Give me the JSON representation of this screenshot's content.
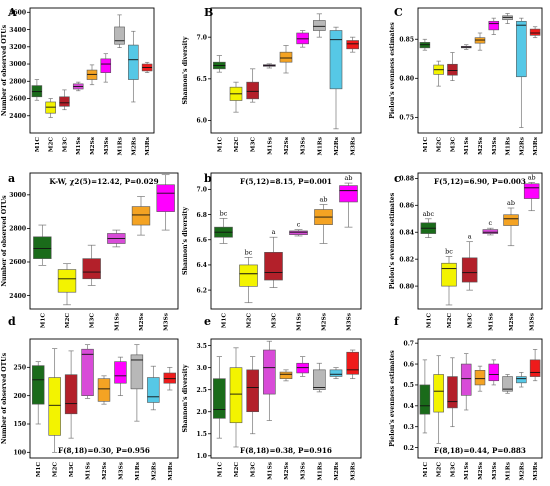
{
  "colors": {
    "M1C": "#1a6b1a",
    "M2C": "#f3f300",
    "M3C": "#b3202a",
    "M1Ss": "#d84bd8",
    "M2Ss": "#f4a323",
    "M3Ss": "#ff00ff",
    "M1Rs": "#b8b8b8",
    "M2Rs": "#56c8e6",
    "M3Rs": "#ef1b1b"
  },
  "chart_data": [
    {
      "panel": "A",
      "type": "boxplot",
      "ylabel": "Number of observed OTUs",
      "ylim": [
        2200,
        3650
      ],
      "yticks": [
        2400,
        2600,
        2800,
        3000,
        3200,
        3400,
        3600
      ],
      "categories": [
        "M1C",
        "M2C",
        "M3C",
        "M1Ss",
        "M2Ss",
        "M3Ss",
        "M1Rs",
        "M2Rs",
        "M3Rs"
      ],
      "boxes": [
        {
          "min": 2580,
          "q1": 2620,
          "median": 2680,
          "q3": 2750,
          "max": 2820
        },
        {
          "min": 2380,
          "q1": 2430,
          "median": 2500,
          "q3": 2560,
          "max": 2600
        },
        {
          "min": 2470,
          "q1": 2510,
          "median": 2550,
          "q3": 2620,
          "max": 2700
        },
        {
          "min": 2690,
          "q1": 2710,
          "median": 2740,
          "q3": 2770,
          "max": 2790
        },
        {
          "min": 2760,
          "q1": 2820,
          "median": 2880,
          "q3": 2930,
          "max": 2990
        },
        {
          "min": 2790,
          "q1": 2900,
          "median": 3000,
          "q3": 3060,
          "max": 3120
        },
        {
          "min": 3190,
          "q1": 3230,
          "median": 3270,
          "q3": 3430,
          "max": 3570
        },
        {
          "min": 2560,
          "q1": 2820,
          "median": 3050,
          "q3": 3220,
          "max": 3380
        },
        {
          "min": 2900,
          "q1": 2920,
          "median": 2960,
          "q3": 3000,
          "max": 3020
        }
      ]
    },
    {
      "panel": "B",
      "type": "boxplot",
      "ylabel": "Shannon's diversity",
      "ylim": [
        5.85,
        7.35
      ],
      "yticks": [
        6.0,
        6.5,
        7.0
      ],
      "ticklabels": [
        "6.0",
        "6.5",
        "7.0"
      ],
      "categories": [
        "M1C",
        "M2C",
        "M3C",
        "M1Ss",
        "M2Ss",
        "M3Ss",
        "M1Rs",
        "M2Rs",
        "M3Rs"
      ],
      "boxes": [
        {
          "min": 6.58,
          "q1": 6.62,
          "median": 6.66,
          "q3": 6.7,
          "max": 6.78
        },
        {
          "min": 6.1,
          "q1": 6.24,
          "median": 6.32,
          "q3": 6.4,
          "max": 6.46
        },
        {
          "min": 6.22,
          "q1": 6.26,
          "median": 6.35,
          "q3": 6.46,
          "max": 6.62
        },
        {
          "min": 6.63,
          "q1": 6.65,
          "median": 6.66,
          "q3": 6.67,
          "max": 6.68
        },
        {
          "min": 6.57,
          "q1": 6.7,
          "median": 6.75,
          "q3": 6.82,
          "max": 6.9
        },
        {
          "min": 6.88,
          "q1": 6.92,
          "median": 6.98,
          "q3": 7.05,
          "max": 7.08
        },
        {
          "min": 7.0,
          "q1": 7.08,
          "median": 7.13,
          "q3": 7.2,
          "max": 7.28
        },
        {
          "min": 5.9,
          "q1": 6.38,
          "median": 6.97,
          "q3": 7.08,
          "max": 7.12
        },
        {
          "min": 6.82,
          "q1": 6.86,
          "median": 6.92,
          "q3": 6.96,
          "max": 7.0
        }
      ]
    },
    {
      "panel": "C",
      "type": "boxplot",
      "ylabel": "Pielou's evenness estimates",
      "ylim": [
        0.73,
        0.89
      ],
      "yticks": [
        0.75,
        0.8,
        0.85
      ],
      "ticklabels": [
        "0.75",
        "0.80",
        "0.85"
      ],
      "categories": [
        "M1C",
        "M2C",
        "M3C",
        "M1Ss",
        "M2Ss",
        "M3Ss",
        "M1Rs",
        "M2Rs",
        "M3Rs"
      ],
      "boxes": [
        {
          "min": 0.836,
          "q1": 0.839,
          "median": 0.843,
          "q3": 0.846,
          "max": 0.85
        },
        {
          "min": 0.79,
          "q1": 0.805,
          "median": 0.811,
          "q3": 0.817,
          "max": 0.822
        },
        {
          "min": 0.797,
          "q1": 0.804,
          "median": 0.81,
          "q3": 0.818,
          "max": 0.833
        },
        {
          "min": 0.837,
          "q1": 0.839,
          "median": 0.84,
          "q3": 0.841,
          "max": 0.843
        },
        {
          "min": 0.836,
          "q1": 0.845,
          "median": 0.849,
          "q3": 0.852,
          "max": 0.858
        },
        {
          "min": 0.856,
          "q1": 0.862,
          "median": 0.87,
          "q3": 0.873,
          "max": 0.877
        },
        {
          "min": 0.87,
          "q1": 0.875,
          "median": 0.878,
          "q3": 0.88,
          "max": 0.883
        },
        {
          "min": 0.737,
          "q1": 0.802,
          "median": 0.868,
          "q3": 0.873,
          "max": 0.877
        },
        {
          "min": 0.852,
          "q1": 0.855,
          "median": 0.858,
          "q3": 0.863,
          "max": 0.866
        }
      ]
    },
    {
      "panel": "a",
      "type": "boxplot",
      "stat": "K-W, χ2(5)=12.42, P=0.029",
      "ylabel": "Number of observed OTUs",
      "ylim": [
        2320,
        3130
      ],
      "yticks": [
        2400,
        2600,
        2800,
        3000
      ],
      "categories": [
        "M1C",
        "M2C",
        "M3C",
        "M1Ss",
        "M2Ss",
        "M3Ss"
      ],
      "boxes": [
        {
          "min": 2580,
          "q1": 2620,
          "median": 2680,
          "q3": 2750,
          "max": 2820
        },
        {
          "min": 2345,
          "q1": 2420,
          "median": 2500,
          "q3": 2555,
          "max": 2590
        },
        {
          "min": 2460,
          "q1": 2500,
          "median": 2540,
          "q3": 2620,
          "max": 2700
        },
        {
          "min": 2690,
          "q1": 2710,
          "median": 2740,
          "q3": 2770,
          "max": 2790
        },
        {
          "min": 2760,
          "q1": 2820,
          "median": 2880,
          "q3": 2930,
          "max": 2990
        },
        {
          "min": 2790,
          "q1": 2900,
          "median": 3010,
          "q3": 3060,
          "max": 3120
        }
      ]
    },
    {
      "panel": "b",
      "type": "boxplot",
      "stat": "F(5,12)=8.15, P=0.001",
      "ylabel": "Shannon's diversity",
      "ylim": [
        6.05,
        7.13
      ],
      "yticks": [
        6.2,
        6.4,
        6.6,
        6.8,
        7.0
      ],
      "ticklabels": [
        "6.2",
        "6.4",
        "6.6",
        "6.8",
        "7.0"
      ],
      "categories": [
        "M1C",
        "M2C",
        "M3C",
        "M1Ss",
        "M2Ss",
        "M3Ss"
      ],
      "letters": [
        "bc",
        "bc",
        "a",
        "c",
        "ab",
        "ab"
      ],
      "boxes": [
        {
          "min": 6.57,
          "q1": 6.62,
          "median": 6.66,
          "q3": 6.7,
          "max": 6.77
        },
        {
          "min": 6.1,
          "q1": 6.23,
          "median": 6.33,
          "q3": 6.4,
          "max": 6.46
        },
        {
          "min": 6.22,
          "q1": 6.28,
          "median": 6.34,
          "q3": 6.5,
          "max": 6.62
        },
        {
          "min": 6.63,
          "q1": 6.64,
          "median": 6.66,
          "q3": 6.67,
          "max": 6.68
        },
        {
          "min": 6.57,
          "q1": 6.72,
          "median": 6.78,
          "q3": 6.84,
          "max": 6.88
        },
        {
          "min": 6.7,
          "q1": 6.9,
          "median": 6.99,
          "q3": 7.03,
          "max": 7.05
        }
      ]
    },
    {
      "panel": "c",
      "type": "boxplot",
      "stat": "F(5,12)=6.90, P=0.003",
      "ylabel": "Pielou's evenness estimates",
      "ylim": [
        0.783,
        0.884
      ],
      "yticks": [
        0.8,
        0.82,
        0.84,
        0.86,
        0.88
      ],
      "ticklabels": [
        "0.80",
        "0.82",
        "0.84",
        "0.86",
        "0.88"
      ],
      "categories": [
        "M1C",
        "M2C",
        "M3C",
        "M1Ss",
        "M2Ss",
        "M3Ss"
      ],
      "letters": [
        "abc",
        "bc",
        "a",
        "c",
        "ab",
        "ab"
      ],
      "boxes": [
        {
          "min": 0.836,
          "q1": 0.839,
          "median": 0.843,
          "q3": 0.847,
          "max": 0.85
        },
        {
          "min": 0.786,
          "q1": 0.8,
          "median": 0.813,
          "q3": 0.817,
          "max": 0.822
        },
        {
          "min": 0.797,
          "q1": 0.803,
          "median": 0.81,
          "q3": 0.821,
          "max": 0.833
        },
        {
          "min": 0.838,
          "q1": 0.839,
          "median": 0.84,
          "q3": 0.842,
          "max": 0.843
        },
        {
          "min": 0.83,
          "q1": 0.845,
          "median": 0.85,
          "q3": 0.853,
          "max": 0.858
        },
        {
          "min": 0.856,
          "q1": 0.865,
          "median": 0.873,
          "q3": 0.876,
          "max": 0.877
        }
      ]
    },
    {
      "panel": "d",
      "type": "boxplot",
      "stat": "F(8,18)=0.30, P=0.956",
      "ylabel": "Number of observed OTUs",
      "ylim": [
        90,
        300
      ],
      "yticks": [
        100,
        150,
        200,
        250
      ],
      "categories": [
        "M1C",
        "M2C",
        "M3C",
        "M1Ss",
        "M2Ss",
        "M3Ss",
        "M1Rs",
        "M2Rs",
        "M3Rs"
      ],
      "boxes": [
        {
          "min": 150,
          "q1": 185,
          "median": 228,
          "q3": 253,
          "max": 260
        },
        {
          "min": 100,
          "q1": 130,
          "median": 183,
          "q3": 232,
          "max": 283
        },
        {
          "min": 125,
          "q1": 168,
          "median": 186,
          "q3": 237,
          "max": 279
        },
        {
          "min": 195,
          "q1": 200,
          "median": 273,
          "q3": 282,
          "max": 290
        },
        {
          "min": 185,
          "q1": 190,
          "median": 212,
          "q3": 230,
          "max": 235
        },
        {
          "min": 200,
          "q1": 222,
          "median": 235,
          "q3": 260,
          "max": 268
        },
        {
          "min": 155,
          "q1": 212,
          "median": 263,
          "q3": 272,
          "max": 290
        },
        {
          "min": 175,
          "q1": 188,
          "median": 198,
          "q3": 232,
          "max": 252
        },
        {
          "min": 210,
          "q1": 222,
          "median": 230,
          "q3": 240,
          "max": 250
        }
      ]
    },
    {
      "panel": "e",
      "type": "boxplot",
      "stat": "F(8,18)=0.38, P=0.916",
      "ylabel": "Shannon's diversity",
      "ylim": [
        0.95,
        3.65
      ],
      "yticks": [
        1.0,
        1.5,
        2.0,
        2.5,
        3.0,
        3.5
      ],
      "ticklabels": [
        "1.0",
        "1.5",
        "2.0",
        "2.5",
        "3.0",
        "3.5"
      ],
      "categories": [
        "M1C",
        "M2C",
        "M3C",
        "M1Ss",
        "M2Ss",
        "M3Ss",
        "M1Rs",
        "M2Rs",
        "M3Rs"
      ],
      "boxes": [
        {
          "min": 1.4,
          "q1": 1.85,
          "median": 2.05,
          "q3": 2.75,
          "max": 3.25
        },
        {
          "min": 1.2,
          "q1": 1.75,
          "median": 2.4,
          "q3": 3.0,
          "max": 3.45
        },
        {
          "min": 1.5,
          "q1": 2.0,
          "median": 2.55,
          "q3": 2.95,
          "max": 3.25
        },
        {
          "min": 1.8,
          "q1": 2.4,
          "median": 3.0,
          "q3": 3.4,
          "max": 3.6
        },
        {
          "min": 2.7,
          "q1": 2.75,
          "median": 2.85,
          "q3": 2.9,
          "max": 2.95
        },
        {
          "min": 2.8,
          "q1": 2.88,
          "median": 3.0,
          "q3": 3.1,
          "max": 3.25
        },
        {
          "min": 2.45,
          "q1": 2.5,
          "median": 2.55,
          "q3": 2.95,
          "max": 3.1
        },
        {
          "min": 2.75,
          "q1": 2.8,
          "median": 2.85,
          "q3": 2.95,
          "max": 3.0
        },
        {
          "min": 2.75,
          "q1": 2.85,
          "median": 2.95,
          "q3": 3.35,
          "max": 3.4
        }
      ]
    },
    {
      "panel": "f",
      "type": "boxplot",
      "stat": "F(8,18)=0.44, P=0.883",
      "ylabel": "Pielou's evenness estimates",
      "ylim": [
        0.15,
        0.72
      ],
      "yticks": [
        0.2,
        0.3,
        0.4,
        0.5,
        0.6,
        0.7
      ],
      "ticklabels": [
        "0.2",
        "0.3",
        "0.4",
        "0.5",
        "0.6",
        "0.7"
      ],
      "categories": [
        "M1C",
        "M2C",
        "M3C",
        "M1Ss",
        "M2Ss",
        "M3Ss",
        "M1Rs",
        "M2Rs",
        "M3Rs"
      ],
      "boxes": [
        {
          "min": 0.27,
          "q1": 0.36,
          "median": 0.4,
          "q3": 0.5,
          "max": 0.62
        },
        {
          "min": 0.22,
          "q1": 0.37,
          "median": 0.47,
          "q3": 0.55,
          "max": 0.64
        },
        {
          "min": 0.3,
          "q1": 0.39,
          "median": 0.42,
          "q3": 0.54,
          "max": 0.63
        },
        {
          "min": 0.38,
          "q1": 0.45,
          "median": 0.53,
          "q3": 0.6,
          "max": 0.65
        },
        {
          "min": 0.47,
          "q1": 0.5,
          "median": 0.53,
          "q3": 0.57,
          "max": 0.59
        },
        {
          "min": 0.5,
          "q1": 0.52,
          "median": 0.55,
          "q3": 0.6,
          "max": 0.62
        },
        {
          "min": 0.46,
          "q1": 0.47,
          "median": 0.48,
          "q3": 0.54,
          "max": 0.55
        },
        {
          "min": 0.49,
          "q1": 0.51,
          "median": 0.53,
          "q3": 0.54,
          "max": 0.56
        },
        {
          "min": 0.52,
          "q1": 0.54,
          "median": 0.56,
          "q3": 0.62,
          "max": 0.67
        }
      ]
    }
  ]
}
